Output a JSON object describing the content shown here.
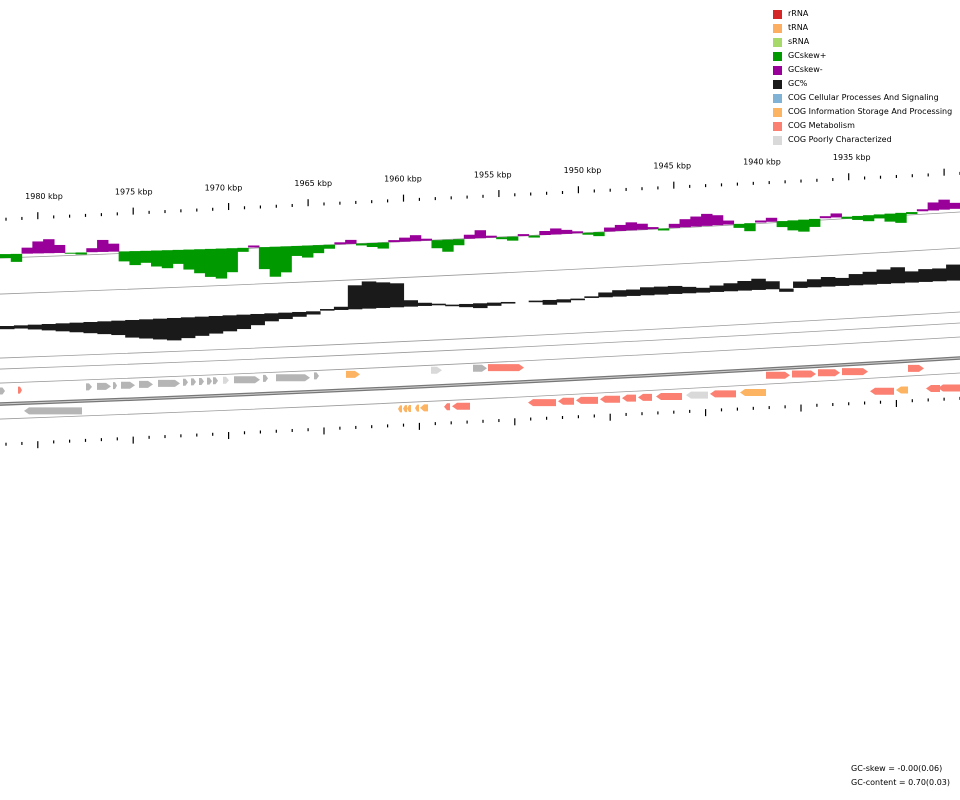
{
  "legend": [
    {
      "label": "rRNA",
      "color": "#d62728"
    },
    {
      "label": "tRNA",
      "color": "#fdae61"
    },
    {
      "label": "sRNA",
      "color": "#a6d96a"
    },
    {
      "label": "GCskew+",
      "color": "#009900"
    },
    {
      "label": "GCskew-",
      "color": "#990099"
    },
    {
      "label": "GC%",
      "color": "#1a1a1a"
    },
    {
      "label": "COG Cellular Processes And Signaling",
      "color": "#7fb2d5"
    },
    {
      "label": "COG Information Storage And Processing",
      "color": "#fdb462"
    },
    {
      "label": "COG Metabolism",
      "color": "#fb8072"
    },
    {
      "label": "COG Poorly Characterized",
      "color": "#d9d9d9"
    }
  ],
  "tick_labels": [
    {
      "label": "1980 kbp",
      "kbp": 1980
    },
    {
      "label": "1975 kbp",
      "kbp": 1975
    },
    {
      "label": "1970 kbp",
      "kbp": 1970
    },
    {
      "label": "1965 kbp",
      "kbp": 1965
    },
    {
      "label": "1960 kbp",
      "kbp": 1960
    },
    {
      "label": "1955 kbp",
      "kbp": 1955
    },
    {
      "label": "1950 kbp",
      "kbp": 1950
    },
    {
      "label": "1945 kbp",
      "kbp": 1945
    },
    {
      "label": "1940 kbp",
      "kbp": 1940
    },
    {
      "label": "1935 kbp",
      "kbp": 1935
    }
  ],
  "stats": {
    "gc_skew": "GC-skew = -0.00(0.06)",
    "gc_content": "GC-content = 0.70(0.03)"
  }
}
